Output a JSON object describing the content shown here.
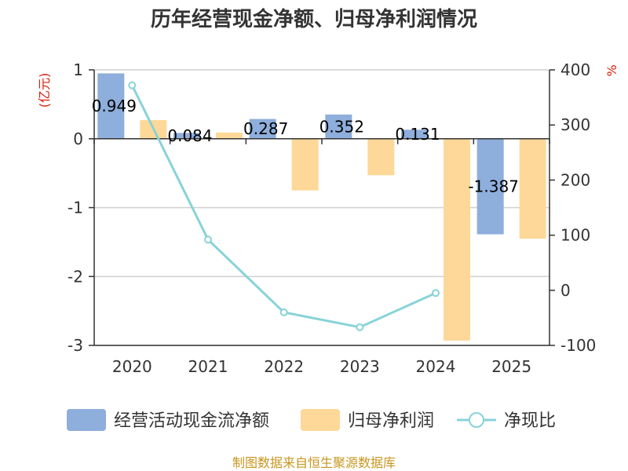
{
  "chart_data": {
    "type": "bar",
    "title": "历年经营现金净额、归母净利润情况",
    "categories": [
      "2020",
      "2021",
      "2022",
      "2023",
      "2024",
      "2025"
    ],
    "left_axis": {
      "unit": "(亿元)",
      "ylim": [
        -3,
        1
      ],
      "ticks": [
        "1",
        "0",
        "-1",
        "-2",
        "-3"
      ],
      "tick_values": [
        1,
        0,
        -1,
        -2,
        -3
      ]
    },
    "right_axis": {
      "unit": "%",
      "ylim": [
        -100,
        400
      ],
      "ticks": [
        "400",
        "300",
        "200",
        "100",
        "0",
        "-100"
      ],
      "tick_values": [
        400,
        300,
        200,
        100,
        0,
        -100
      ]
    },
    "series": [
      {
        "name": "经营活动现金流净额",
        "type": "bar",
        "axis": "left",
        "color": "#8eaedc",
        "values": [
          0.949,
          0.084,
          0.287,
          0.352,
          0.131,
          -1.387
        ],
        "labels": [
          "0.949",
          "0.084",
          "0.287",
          "0.352",
          "0.131",
          "-1.387"
        ]
      },
      {
        "name": "归母净利润",
        "type": "bar",
        "axis": "left",
        "color": "#fed898",
        "values": [
          0.27,
          0.09,
          -0.75,
          -0.53,
          -2.93,
          -1.45
        ]
      },
      {
        "name": "净现比",
        "type": "line",
        "axis": "right",
        "color": "#88d3d8",
        "values": [
          372,
          92,
          -40,
          -67,
          -5,
          null
        ]
      }
    ],
    "grid": true,
    "legend": "bottom"
  },
  "source_note": "制图数据来自恒生聚源数据库"
}
